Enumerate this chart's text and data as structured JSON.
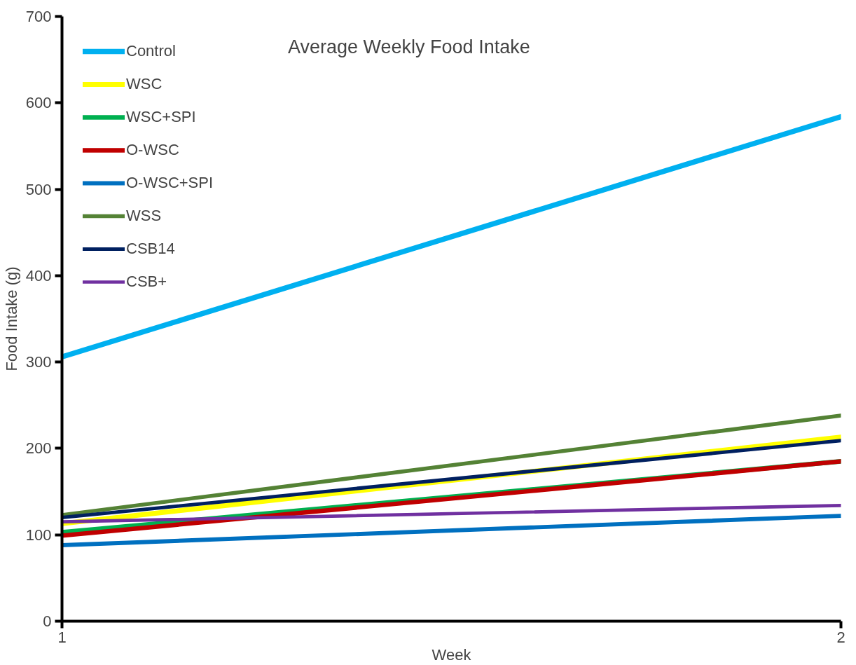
{
  "chart_data": {
    "type": "line",
    "title": "Average Weekly Food Intake",
    "xlabel": "Week",
    "ylabel": "Food Intake (g)",
    "x": [
      1,
      2
    ],
    "xlim": [
      1,
      2
    ],
    "xticks": [
      1,
      2
    ],
    "ylim": [
      0,
      700
    ],
    "yticks": [
      0,
      100,
      200,
      300,
      400,
      500,
      600,
      700
    ],
    "grid": false,
    "legend": "top left",
    "marker": "none",
    "line_style": "solid",
    "series": [
      {
        "name": "Control",
        "color": "#00b0f0",
        "values": [
          306,
          584
        ]
      },
      {
        "name": "WSC",
        "color": "#ffff00",
        "values": [
          113,
          213
        ]
      },
      {
        "name": "WSC+SPI",
        "color": "#00b050",
        "values": [
          103,
          185
        ]
      },
      {
        "name": "O-WSC",
        "color": "#c00000",
        "values": [
          99,
          185
        ]
      },
      {
        "name": "O-WSC+SPI",
        "color": "#0070c0",
        "values": [
          88,
          122
        ]
      },
      {
        "name": "WSS",
        "color": "#548235",
        "values": [
          123,
          238
        ]
      },
      {
        "name": "CSB14",
        "color": "#002060",
        "values": [
          120,
          209
        ]
      },
      {
        "name": "CSB+",
        "color": "#7030a0",
        "values": [
          115,
          134
        ]
      }
    ]
  }
}
